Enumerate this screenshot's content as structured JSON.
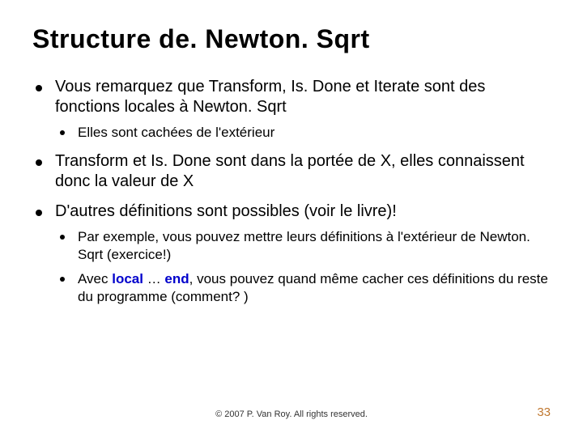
{
  "title": "Structure de. Newton. Sqrt",
  "b1": "Vous remarquez que Transform, Is. Done et Iterate sont des fonctions locales à Newton. Sqrt",
  "b1a": "Elles sont cachées de l'extérieur",
  "b2": "Transform et Is. Done sont dans la portée de X, elles connaissent donc la valeur de X",
  "b3": "D'autres définitions sont possibles (voir le livre)!",
  "b3a": "Par exemple, vous pouvez mettre leurs définitions à l'extérieur de Newton. Sqrt (exercice!)",
  "b3b_pre": "Avec ",
  "b3b_kw1": "local",
  "b3b_mid": " … ",
  "b3b_kw2": "end",
  "b3b_post": ", vous pouvez quand même cacher ces définitions du reste du programme (comment? )",
  "footer": "© 2007 P. Van Roy. All rights reserved.",
  "page": "33",
  "colors": {
    "keyword": "#0000cc",
    "pagenum": "#c07830",
    "text": "#000000",
    "bg": "#ffffff"
  },
  "fonts": {
    "title_size": 32,
    "body_size": 20,
    "sub_size": 17,
    "footer_size": 11,
    "page_size": 15
  }
}
